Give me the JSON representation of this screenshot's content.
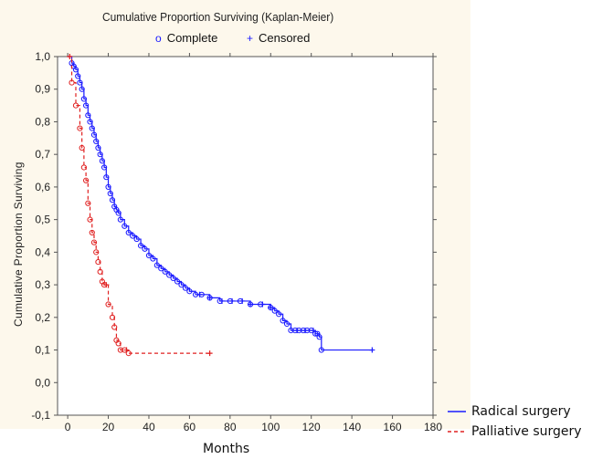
{
  "chart_data": {
    "type": "line",
    "title": "Cumulative Proportion Surviving (Kaplan-Meier)",
    "xlabel": "Months",
    "ylabel": "Cumulative Proportion Surviving",
    "xlim": [
      -5,
      180
    ],
    "ylim": [
      -0.1,
      1.0
    ],
    "x_ticks": [
      0,
      20,
      40,
      60,
      80,
      100,
      120,
      140,
      160,
      180
    ],
    "y_ticks": [
      -0.1,
      0.0,
      0.1,
      0.2,
      0.3,
      0.4,
      0.5,
      0.6,
      0.7,
      0.8,
      0.9,
      1.0
    ],
    "y_tick_labels": [
      "-0,1",
      "0,0",
      "0,1",
      "0,2",
      "0,3",
      "0,4",
      "0,5",
      "0,6",
      "0,7",
      "0,8",
      "0,9",
      "1,0"
    ],
    "grid": false,
    "marker_legend": {
      "complete": "Complete",
      "censored": "Censored"
    },
    "series": [
      {
        "name": "Radical surgery",
        "color": "#1a1aff",
        "style": "solid",
        "x": [
          0,
          2,
          3,
          4,
          5,
          6,
          7,
          8,
          9,
          10,
          11,
          12,
          13,
          14,
          15,
          16,
          17,
          18,
          19,
          20,
          21,
          22,
          23,
          24,
          25,
          26,
          28,
          30,
          32,
          34,
          36,
          38,
          40,
          42,
          44,
          46,
          48,
          50,
          52,
          54,
          56,
          58,
          60,
          63,
          66,
          70,
          75,
          80,
          85,
          90,
          95,
          100,
          102,
          104,
          106,
          108,
          110,
          112,
          114,
          116,
          118,
          120,
          122,
          123,
          124,
          125,
          150
        ],
        "y": [
          1.0,
          0.98,
          0.97,
          0.96,
          0.94,
          0.92,
          0.9,
          0.87,
          0.85,
          0.82,
          0.8,
          0.78,
          0.76,
          0.74,
          0.72,
          0.7,
          0.68,
          0.66,
          0.63,
          0.6,
          0.58,
          0.56,
          0.54,
          0.53,
          0.52,
          0.5,
          0.48,
          0.46,
          0.45,
          0.44,
          0.42,
          0.41,
          0.39,
          0.38,
          0.36,
          0.35,
          0.34,
          0.33,
          0.32,
          0.31,
          0.3,
          0.29,
          0.28,
          0.27,
          0.27,
          0.26,
          0.25,
          0.25,
          0.25,
          0.24,
          0.24,
          0.23,
          0.22,
          0.21,
          0.19,
          0.18,
          0.16,
          0.16,
          0.16,
          0.16,
          0.16,
          0.16,
          0.15,
          0.15,
          0.14,
          0.1,
          0.1
        ],
        "censored_x": [
          65,
          70,
          76,
          81,
          86,
          90,
          96,
          100,
          113,
          117,
          121,
          150
        ]
      },
      {
        "name": "Palliative surgery",
        "color": "#e02020",
        "style": "dashed",
        "x": [
          0,
          2,
          4,
          6,
          7,
          8,
          9,
          10,
          11,
          12,
          13,
          14,
          15,
          16,
          17,
          18,
          20,
          22,
          23,
          24,
          25,
          26,
          28,
          30,
          70
        ],
        "y": [
          1.0,
          0.92,
          0.85,
          0.78,
          0.72,
          0.66,
          0.62,
          0.55,
          0.5,
          0.46,
          0.43,
          0.4,
          0.37,
          0.34,
          0.31,
          0.3,
          0.24,
          0.2,
          0.17,
          0.13,
          0.12,
          0.1,
          0.1,
          0.09,
          0.09
        ],
        "censored_x": [
          1,
          19,
          29,
          70
        ]
      }
    ]
  }
}
